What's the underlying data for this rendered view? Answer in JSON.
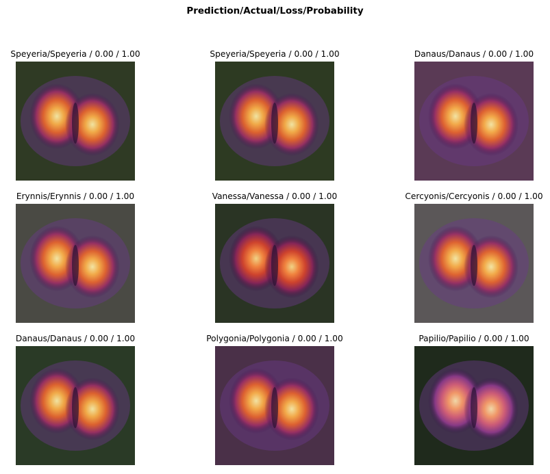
{
  "figure": {
    "title": "Prediction/Actual/Loss/Probability"
  },
  "chart_data": {
    "type": "image_grid",
    "title": "Prediction/Actual/Loss/Probability",
    "rows": 3,
    "cols": 3,
    "cells": [
      {
        "label": "Speyeria/Speyeria / 0.00 / 1.00",
        "prediction": "Speyeria",
        "actual": "Speyeria",
        "loss": 0.0,
        "probability": 1.0,
        "bg": "#2f3a24",
        "heat": "orange"
      },
      {
        "label": "Speyeria/Speyeria / 0.00 / 1.00",
        "prediction": "Speyeria",
        "actual": "Speyeria",
        "loss": 0.0,
        "probability": 1.0,
        "bg": "#2d3a22",
        "heat": "orange"
      },
      {
        "label": "Danaus/Danaus / 0.00 / 1.00",
        "prediction": "Danaus",
        "actual": "Danaus",
        "loss": 0.0,
        "probability": 1.0,
        "bg": "#5a3a55",
        "heat": "orange"
      },
      {
        "label": "Erynnis/Erynnis / 0.00 / 1.00",
        "prediction": "Erynnis",
        "actual": "Erynnis",
        "loss": 0.0,
        "probability": 1.0,
        "bg": "#4a4a44",
        "heat": "orange"
      },
      {
        "label": "Vanessa/Vanessa / 0.00 / 1.00",
        "prediction": "Vanessa",
        "actual": "Vanessa",
        "loss": 0.0,
        "probability": 1.0,
        "bg": "#2a3424",
        "heat": "red"
      },
      {
        "label": "Cercyonis/Cercyonis / 0.00 / 1.00",
        "prediction": "Cercyonis",
        "actual": "Cercyonis",
        "loss": 0.0,
        "probability": 1.0,
        "bg": "#5b5758",
        "heat": "orange"
      },
      {
        "label": "Danaus/Danaus / 0.00 / 1.00",
        "prediction": "Danaus",
        "actual": "Danaus",
        "loss": 0.0,
        "probability": 1.0,
        "bg": "#2a3a26",
        "heat": "orange"
      },
      {
        "label": "Polygonia/Polygonia / 0.00 / 1.00",
        "prediction": "Polygonia",
        "actual": "Polygonia",
        "loss": 0.0,
        "probability": 1.0,
        "bg": "#4a3048",
        "heat": "orange"
      },
      {
        "label": "Papilio/Papilio / 0.00 / 1.00",
        "prediction": "Papilio",
        "actual": "Papilio",
        "loss": 0.0,
        "probability": 1.0,
        "bg": "#1f2a1c",
        "heat": "pink"
      }
    ]
  }
}
